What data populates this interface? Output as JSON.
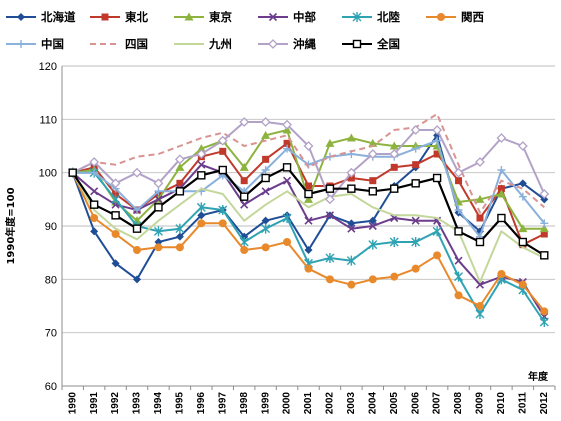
{
  "chart_data": {
    "type": "line",
    "title": "",
    "xlabel": "年度",
    "ylabel": "1990年度=100",
    "ylim": [
      60,
      120
    ],
    "yticks": [
      60,
      70,
      80,
      90,
      100,
      110,
      120
    ],
    "grid": true,
    "legend_position": "top",
    "categories": [
      "1990",
      "1991",
      "1992",
      "1993",
      "1994",
      "1995",
      "1996",
      "1997",
      "1998",
      "1999",
      "2000",
      "2001",
      "2002",
      "2003",
      "2004",
      "2005",
      "2006",
      "2007",
      "2008",
      "2009",
      "2010",
      "2011",
      "2012"
    ],
    "series": [
      {
        "name": "北海道",
        "color": "#1f4e96",
        "marker": "diamond",
        "dash": false,
        "values": [
          100,
          89,
          83,
          80,
          87,
          88,
          92,
          93,
          88,
          91,
          92,
          85.5,
          92,
          90.5,
          91,
          97.5,
          101,
          107,
          92.5,
          89,
          97,
          98,
          95
        ]
      },
      {
        "name": "東北",
        "color": "#c0392b",
        "marker": "square",
        "dash": false,
        "values": [
          100,
          101,
          96,
          93,
          96,
          98,
          103,
          104,
          98.5,
          102.5,
          105.5,
          97.5,
          97.5,
          99,
          98.5,
          101,
          101.5,
          103.5,
          98.5,
          91.5,
          97,
          86.5,
          88.5
        ]
      },
      {
        "name": "東京",
        "color": "#8db33f",
        "marker": "triangle",
        "dash": false,
        "values": [
          100,
          100.5,
          94.5,
          91,
          95,
          101,
          104.5,
          106,
          101,
          107,
          108,
          95,
          105.5,
          106.5,
          105.5,
          105,
          105,
          105,
          94.5,
          95,
          96,
          89.5,
          89.5
        ]
      },
      {
        "name": "中部",
        "color": "#6b3d8c",
        "marker": "x",
        "dash": false,
        "values": [
          100,
          96.5,
          94,
          93,
          95,
          97,
          101.5,
          100,
          94,
          96.5,
          98.5,
          91,
          92,
          89.5,
          90,
          91.5,
          91,
          91,
          83.5,
          79,
          80.5,
          79.5,
          73
        ]
      },
      {
        "name": "北陸",
        "color": "#2fa3b3",
        "marker": "star",
        "dash": false,
        "values": [
          100,
          100,
          95,
          90,
          89,
          89.5,
          93.5,
          93,
          87,
          89.5,
          91.5,
          83,
          84,
          83.5,
          86.5,
          87,
          87,
          89,
          80.5,
          73.5,
          80,
          78,
          72
        ]
      },
      {
        "name": "関西",
        "color": "#e8892b",
        "marker": "circle",
        "dash": false,
        "values": [
          100,
          91.5,
          88.5,
          85.5,
          86,
          86,
          90.5,
          90.5,
          85.5,
          86,
          87,
          82,
          80,
          79,
          80,
          80.5,
          82,
          84.5,
          77,
          75,
          81,
          79,
          74
        ]
      },
      {
        "name": "中国",
        "color": "#8ab0dc",
        "marker": "plus",
        "dash": false,
        "values": [
          100,
          100,
          97,
          93,
          96.5,
          96.5,
          96.5,
          99.5,
          96.5,
          100.5,
          104.5,
          101.5,
          103,
          103.5,
          103,
          103,
          104.5,
          106,
          93,
          88,
          100.5,
          95.5,
          90.5
        ]
      },
      {
        "name": "四国",
        "color": "#d99391",
        "marker": "none",
        "dash": true,
        "values": [
          100,
          102,
          101.5,
          103,
          103.5,
          105,
          106.5,
          107.5,
          105,
          106,
          107,
          101,
          103,
          104,
          105,
          108,
          108.5,
          111,
          101.5,
          92.5,
          98.5,
          97,
          93.5
        ]
      },
      {
        "name": "九州",
        "color": "#c4d79b",
        "marker": "none",
        "dash": false,
        "values": [
          100,
          93,
          89.5,
          87.5,
          91,
          94,
          97,
          96,
          91,
          94,
          96.5,
          93.5,
          95.5,
          96,
          93.5,
          92,
          92,
          91.5,
          89,
          79.5,
          89,
          86,
          84
        ]
      },
      {
        "name": "沖縄",
        "color": "#b3a2c7",
        "marker": "diamond-open",
        "dash": false,
        "values": [
          100,
          102,
          98,
          100,
          98,
          102.5,
          103.5,
          106,
          109.5,
          109.5,
          109,
          105,
          95,
          100,
          103.5,
          103.5,
          108,
          108,
          100,
          102,
          106.5,
          105,
          96
        ]
      },
      {
        "name": "全国",
        "color": "#000000",
        "marker": "square-open",
        "dash": false,
        "values": [
          100,
          94,
          92,
          89.5,
          93.5,
          96.5,
          99.5,
          100.5,
          95.5,
          99,
          101,
          96,
          97,
          97,
          96.5,
          97,
          98,
          99,
          89,
          87,
          91.5,
          87,
          84.5
        ]
      }
    ]
  }
}
